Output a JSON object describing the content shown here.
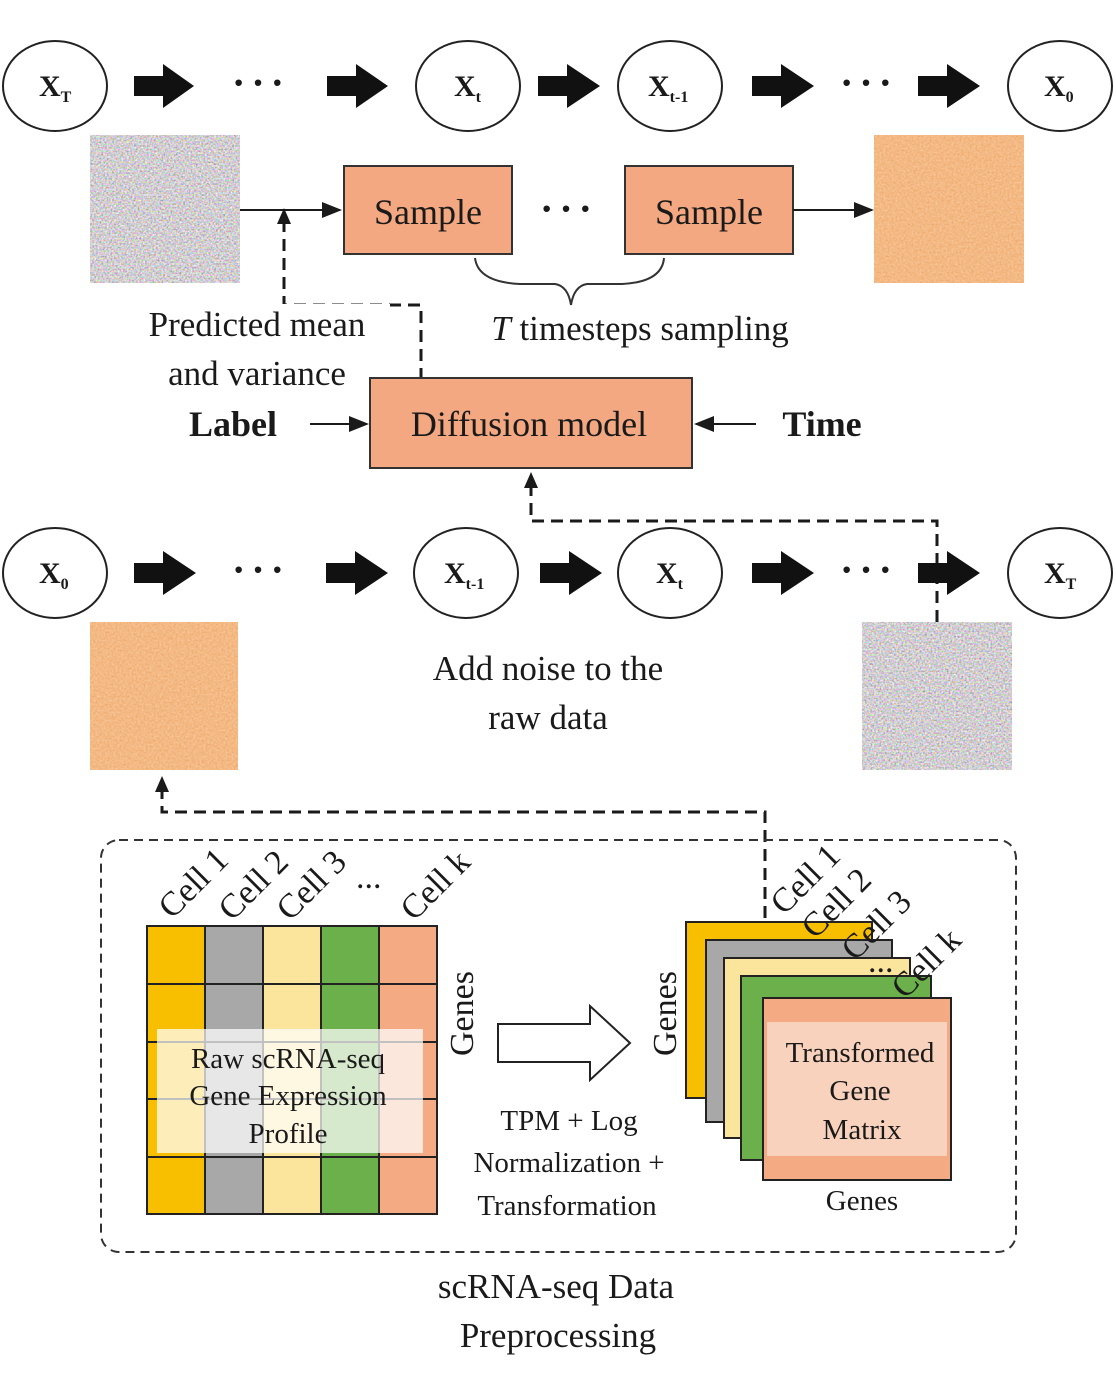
{
  "reverse_chain": {
    "nodes": [
      {
        "base": "X",
        "sub": "T"
      },
      {
        "base": "X",
        "sub": "t"
      },
      {
        "base": "X",
        "sub": "t-1"
      },
      {
        "base": "X",
        "sub": "0"
      }
    ],
    "ellipsis": "···"
  },
  "sampling": {
    "sample_label": "Sample",
    "ellipsis": "···",
    "brace_label_italic": "T",
    "brace_label_rest": " timesteps sampling"
  },
  "model": {
    "predicted_line1": "Predicted mean",
    "predicted_line2": "and variance",
    "label_input": "Label",
    "model_name": "Diffusion model",
    "time_input": "Time"
  },
  "forward_chain": {
    "nodes": [
      {
        "base": "X",
        "sub": "0"
      },
      {
        "base": "X",
        "sub": "t-1"
      },
      {
        "base": "X",
        "sub": "t"
      },
      {
        "base": "X",
        "sub": "T"
      }
    ],
    "ellipsis": "···",
    "caption_line1": "Add noise to the",
    "caption_line2": "raw data"
  },
  "preprocessing": {
    "columns": [
      "Cell 1",
      "Cell 2",
      "Cell 3",
      "...",
      "Cell k"
    ],
    "genes_label": "Genes",
    "raw_line1": "Raw scRNA-seq",
    "raw_line2": "Gene Expression",
    "raw_line3": "Profile",
    "step_line1": "TPM + Log",
    "step_line2": "Normalization +",
    "step_line3": "Transformation",
    "stack_columns": [
      "Cell 1",
      "Cell 2",
      "Cell 3",
      "...",
      "Cell k"
    ],
    "transformed_line1": "Transformed",
    "transformed_line2": "Gene",
    "transformed_line3": "Matrix",
    "bottom_genes": "Genes",
    "title_line1": "scRNA-seq Data",
    "title_line2": "Preprocessing"
  },
  "colors": {
    "box_fill": "#f3a882",
    "yellow": "#f8be00",
    "gray": "#a8a8a8",
    "light_yellow": "#fbe59c",
    "green": "#6bb04a",
    "salmon": "#f4aa82"
  }
}
